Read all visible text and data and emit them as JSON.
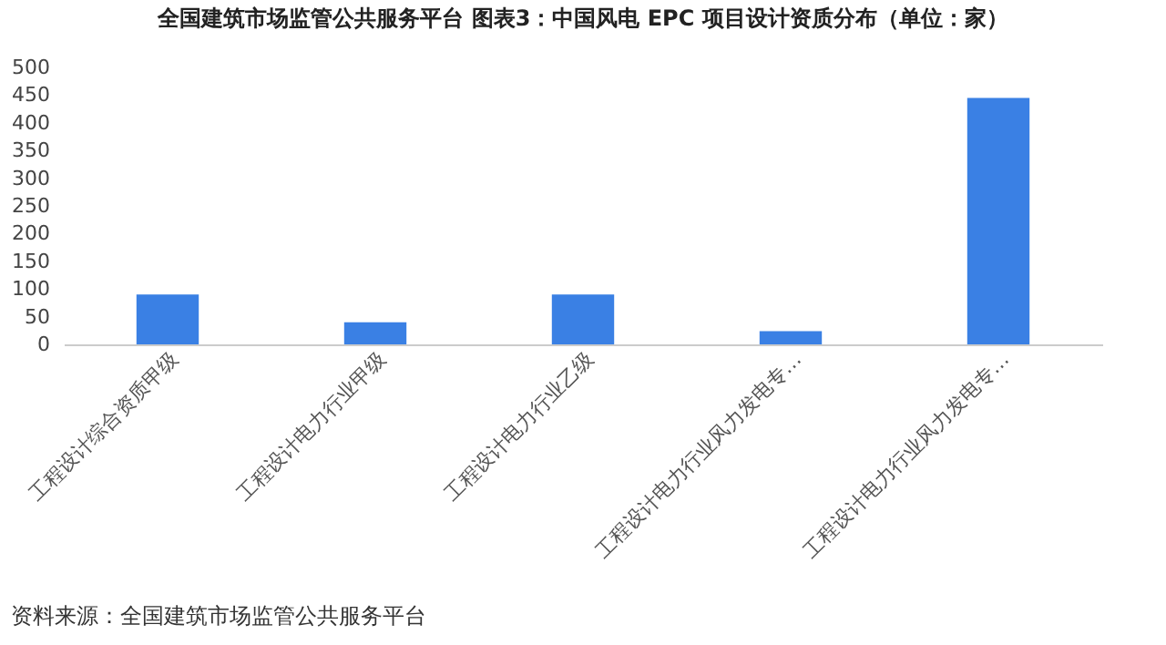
{
  "chart_data": {
    "type": "bar",
    "title": "全国建筑市场监管公共服务平台  图表3：中国风电 EPC 项目设计资质分布（单位：家）",
    "categories": [
      "工程设计综合资质甲级",
      "工程设计电力行业甲级",
      "工程设计电力行业乙级",
      "工程设计电力行业风力发电专…",
      "工程设计电力行业风力发电专…"
    ],
    "values": [
      90,
      40,
      90,
      24,
      445
    ],
    "color": "#3a80e4",
    "ylim": [
      0,
      500
    ],
    "yticks": [
      0,
      50,
      100,
      150,
      200,
      250,
      300,
      350,
      400,
      450,
      500
    ],
    "grid": false,
    "annotations": [
      "资料来源：全国建筑市场监管公共服务平台"
    ]
  }
}
